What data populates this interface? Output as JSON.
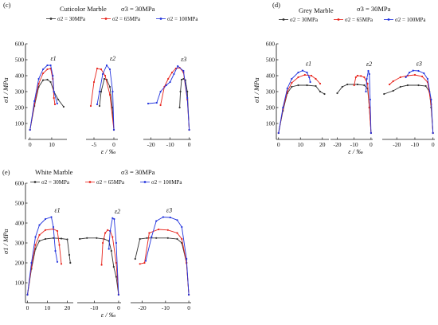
{
  "chart_data": [
    {
      "panel": "(c)",
      "title": "Cuticolor Marble",
      "condition": "σ3 = 30MPa",
      "type": "line",
      "ylabel": "σ1 / MPa",
      "xlabel": "ε / ‰",
      "ylim": [
        0,
        600
      ],
      "yticks": [
        100,
        200,
        300,
        400,
        500,
        600
      ],
      "grid": false,
      "legend_position": "top",
      "colors": {
        "σ2 = 30MPa": "#333333",
        "σ2 = 65MPa": "#e8231b",
        "σ2 = 100MPa": "#2233dd"
      },
      "series": [
        {
          "name": "σ2 = 30MPa",
          "color": "#333333"
        },
        {
          "name": "σ2 = 65MPa",
          "color": "#e8231b"
        },
        {
          "name": "σ2 = 100MPa",
          "color": "#2233dd"
        }
      ],
      "subplots": [
        {
          "label": "ε1",
          "xticks": [
            0,
            10
          ],
          "xlim": [
            -1,
            17
          ],
          "curves": [
            {
              "series": "σ2 = 30MPa",
              "x": [
                0,
                2,
                4,
                6,
                8,
                9.5,
                11,
                13,
                15.5
              ],
              "y": [
                60,
                210,
                330,
                372,
                375,
                360,
                300,
                250,
                205
              ]
            },
            {
              "series": "σ2 = 65MPa",
              "x": [
                0,
                2,
                4,
                6,
                8,
                9.5,
                10.5,
                11,
                11.5
              ],
              "y": [
                60,
                220,
                350,
                415,
                440,
                445,
                380,
                260,
                220
              ]
            },
            {
              "series": "σ2 = 100MPa",
              "x": [
                0,
                2,
                4,
                6,
                8,
                9.5,
                10.5,
                11,
                12.5
              ],
              "y": [
                60,
                240,
                380,
                440,
                465,
                465,
                400,
                300,
                225
              ]
            }
          ]
        },
        {
          "label": "ε2",
          "xticks": [
            -5,
            0
          ],
          "xlim": [
            -7,
            1
          ],
          "curves": [
            {
              "series": "σ2 = 30MPa",
              "x": [
                -3.6,
                -3.2,
                -2.4,
                -1.8,
                -1,
                -0.4,
                0
              ],
              "y": [
                210,
                300,
                380,
                375,
                330,
                200,
                60
              ]
            },
            {
              "series": "σ2 = 65MPa",
              "x": [
                -5.8,
                -5,
                -4.2,
                -3.2,
                -2.2,
                -1,
                0
              ],
              "y": [
                210,
                360,
                445,
                440,
                400,
                280,
                60
              ]
            },
            {
              "series": "σ2 = 100MPa",
              "x": [
                -4.2,
                -3.6,
                -2.8,
                -1.8,
                -1,
                -0.3,
                0
              ],
              "y": [
                220,
                300,
                410,
                465,
                440,
                300,
                60
              ]
            }
          ]
        },
        {
          "label": "ε3",
          "xticks": [
            -20,
            -10,
            0
          ],
          "xlim": [
            -24,
            1
          ],
          "curves": [
            {
              "series": "σ2 = 30MPa",
              "x": [
                -5,
                -4.6,
                -4,
                -3,
                -2,
                -1,
                0
              ],
              "y": [
                200,
                300,
                375,
                380,
                372,
                300,
                60
              ]
            },
            {
              "series": "σ2 = 65MPa",
              "x": [
                -15,
                -13,
                -11,
                -9,
                -7,
                -5,
                -3,
                -1,
                0
              ],
              "y": [
                215,
                330,
                380,
                420,
                445,
                450,
                420,
                250,
                60
              ]
            },
            {
              "series": "σ2 = 100MPa",
              "x": [
                -21.5,
                -17,
                -15,
                -12,
                -10,
                -8,
                -6,
                -3,
                -1,
                0
              ],
              "y": [
                225,
                230,
                300,
                340,
                360,
                410,
                460,
                430,
                260,
                60
              ]
            }
          ]
        }
      ]
    },
    {
      "panel": "(d)",
      "title": "Grey Marble",
      "condition": "σ3 = 30MPa",
      "type": "line",
      "ylabel": "σ1 / MPa",
      "xlabel": "ε / ‰",
      "ylim": [
        0,
        600
      ],
      "yticks": [
        100,
        200,
        300,
        400,
        500,
        600
      ],
      "grid": false,
      "legend_position": "top",
      "series": [
        {
          "name": "σ2 = 30MPa",
          "color": "#333333"
        },
        {
          "name": "σ2 = 65MPa",
          "color": "#e8231b"
        },
        {
          "name": "σ2 = 100MPa",
          "color": "#2233dd"
        }
      ],
      "subplots": [
        {
          "label": "ε1",
          "xticks": [
            0,
            10,
            20
          ],
          "xlim": [
            -1,
            23
          ],
          "curves": [
            {
              "series": "σ2 = 30MPa",
              "x": [
                0,
                2,
                4,
                6,
                9,
                13,
                17,
                19,
                21
              ],
              "y": [
                40,
                180,
                290,
                330,
                340,
                340,
                335,
                300,
                285
              ]
            },
            {
              "series": "σ2 = 65MPa",
              "x": [
                0,
                2,
                4,
                6,
                9,
                12,
                15,
                17,
                19
              ],
              "y": [
                40,
                190,
                300,
                355,
                390,
                405,
                400,
                380,
                350
              ]
            },
            {
              "series": "σ2 = 100MPa",
              "x": [
                0,
                2,
                4,
                6,
                9,
                11,
                13,
                14,
                14.5
              ],
              "y": [
                40,
                200,
                320,
                380,
                420,
                432,
                420,
                390,
                360
              ]
            }
          ]
        },
        {
          "label": "ε2",
          "xticks": [
            -20,
            -10,
            0
          ],
          "xlim": [
            -24,
            1
          ],
          "curves": [
            {
              "series": "σ2 = 30MPa",
              "x": [
                -20,
                -17,
                -14,
                -8,
                -4,
                -2,
                -1,
                0
              ],
              "y": [
                290,
                330,
                345,
                345,
                340,
                320,
                200,
                40
              ]
            },
            {
              "series": "σ2 = 65MPa",
              "x": [
                -10,
                -9,
                -8,
                -6,
                -4,
                -2,
                -1,
                0
              ],
              "y": [
                340,
                390,
                400,
                398,
                390,
                350,
                200,
                40
              ]
            },
            {
              "series": "σ2 = 100MPa",
              "x": [
                -3,
                -2.5,
                -1.6,
                -1,
                -0.5,
                0
              ],
              "y": [
                300,
                380,
                430,
                410,
                250,
                40
              ]
            }
          ]
        },
        {
          "label": "ε3",
          "xticks": [
            -20,
            -10,
            0
          ],
          "xlim": [
            -28,
            1
          ],
          "curves": [
            {
              "series": "σ2 = 30MPa",
              "x": [
                -27,
                -22,
                -18,
                -14,
                -8,
                -4,
                -2,
                -1,
                0
              ],
              "y": [
                285,
                305,
                330,
                340,
                340,
                335,
                300,
                200,
                40
              ]
            },
            {
              "series": "σ2 = 65MPa",
              "x": [
                -24,
                -22,
                -18,
                -14,
                -10,
                -6,
                -3,
                -1,
                0
              ],
              "y": [
                345,
                365,
                390,
                400,
                405,
                395,
                360,
                220,
                40
              ]
            },
            {
              "series": "σ2 = 100MPa",
              "x": [
                -15,
                -13,
                -11,
                -8,
                -5,
                -3,
                -1,
                0
              ],
              "y": [
                390,
                420,
                432,
                430,
                415,
                380,
                250,
                40
              ]
            }
          ]
        }
      ]
    },
    {
      "panel": "(e)",
      "title": "White Marble",
      "condition": "σ3 = 30MPa",
      "type": "line",
      "ylabel": "σ1 / MPa",
      "xlabel": "ε / ‰",
      "ylim": [
        0,
        600
      ],
      "yticks": [
        100,
        200,
        300,
        400,
        500,
        600
      ],
      "grid": false,
      "legend_position": "top",
      "series": [
        {
          "name": "σ2 = 30MPa",
          "color": "#333333"
        },
        {
          "name": "σ2 = 65MPa",
          "color": "#e8231b"
        },
        {
          "name": "σ2 = 100MPa",
          "color": "#2233dd"
        }
      ],
      "subplots": [
        {
          "label": "ε1",
          "xticks": [
            0,
            10,
            20
          ],
          "xlim": [
            -1,
            23
          ],
          "curves": [
            {
              "series": "σ2 = 30MPa",
              "x": [
                0,
                2,
                4,
                6,
                9,
                13,
                17,
                20,
                21,
                21.5
              ],
              "y": [
                40,
                170,
                270,
                310,
                320,
                325,
                322,
                318,
                240,
                200
              ]
            },
            {
              "series": "σ2 = 65MPa",
              "x": [
                0,
                2,
                4,
                6,
                9,
                13,
                15,
                16,
                17
              ],
              "y": [
                40,
                180,
                290,
                340,
                365,
                370,
                360,
                290,
                195
              ]
            },
            {
              "series": "σ2 = 100MPa",
              "x": [
                0,
                2,
                4,
                6,
                9,
                12,
                13,
                14,
                15
              ],
              "y": [
                40,
                200,
                330,
                390,
                420,
                430,
                380,
                260,
                205
              ]
            }
          ]
        },
        {
          "label": "ε2",
          "xticks": [
            -10,
            0
          ],
          "xlim": [
            -17,
            1
          ],
          "curves": [
            {
              "series": "σ2 = 30MPa",
              "x": [
                -16,
                -13,
                -9,
                -6,
                -4,
                -3,
                -2,
                -1,
                0
              ],
              "y": [
                320,
                325,
                325,
                320,
                310,
                260,
                180,
                130,
                40
              ]
            },
            {
              "series": "σ2 = 65MPa",
              "x": [
                -7,
                -6.5,
                -5.5,
                -4.5,
                -3.5,
                -2.5,
                -1,
                0
              ],
              "y": [
                190,
                300,
                350,
                365,
                360,
                330,
                200,
                40
              ]
            },
            {
              "series": "σ2 = 100MPa",
              "x": [
                -4,
                -3.5,
                -2.5,
                -1.8,
                -1,
                0
              ],
              "y": [
                270,
                360,
                425,
                420,
                300,
                40
              ]
            }
          ]
        },
        {
          "label": "ε3",
          "xticks": [
            -20,
            -10,
            0
          ],
          "xlim": [
            -25,
            1
          ],
          "curves": [
            {
              "series": "σ2 = 30MPa",
              "x": [
                -23,
                -21,
                -18,
                -14,
                -9,
                -5,
                -3,
                -1,
                0
              ],
              "y": [
                220,
                320,
                325,
                325,
                325,
                320,
                300,
                200,
                40
              ]
            },
            {
              "series": "σ2 = 65MPa",
              "x": [
                -21,
                -19,
                -17,
                -13,
                -9,
                -5,
                -3,
                -1,
                0
              ],
              "y": [
                195,
                200,
                350,
                368,
                365,
                350,
                320,
                200,
                40
              ]
            },
            {
              "series": "σ2 = 100MPa",
              "x": [
                -18.5,
                -16,
                -14,
                -11,
                -8,
                -5,
                -3,
                -1,
                0
              ],
              "y": [
                210,
                330,
                410,
                430,
                428,
                415,
                380,
                220,
                40
              ]
            }
          ]
        }
      ]
    }
  ]
}
